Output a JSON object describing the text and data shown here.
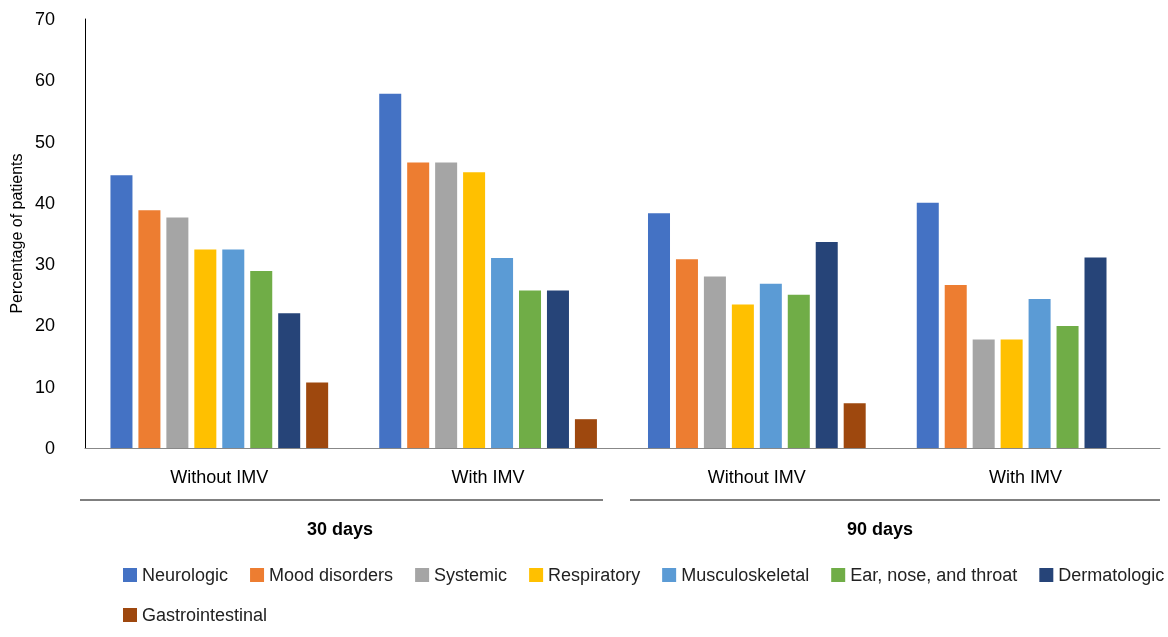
{
  "chart_data": {
    "type": "bar",
    "ylabel": "Percentage of patients",
    "categories": [
      "Without IMV",
      "With IMV",
      "Without IMV",
      "With IMV"
    ],
    "annotations": [
      "30 days",
      "90 days"
    ],
    "series": [
      {
        "name": "Neurologic",
        "color": "#4472c4",
        "values": [
          44.5,
          57.8,
          38.3,
          40
        ]
      },
      {
        "name": "Mood disorders",
        "color": "#ed7d31",
        "values": [
          38.8,
          46.6,
          30.8,
          26.6
        ]
      },
      {
        "name": "Systemic",
        "color": "#a5a5a5",
        "values": [
          37.6,
          46.6,
          28,
          17.7
        ]
      },
      {
        "name": "Respiratory",
        "color": "#ffc000",
        "values": [
          32.4,
          45,
          23.4,
          17.7
        ]
      },
      {
        "name": "Musculoskeletal",
        "color": "#5b9bd5",
        "values": [
          32.4,
          31,
          26.8,
          24.3
        ]
      },
      {
        "name": "Ear, nose, and throat",
        "color": "#70ad47",
        "values": [
          28.9,
          25.7,
          25,
          19.9
        ]
      },
      {
        "name": "Dermatologic",
        "color": "#264478",
        "values": [
          22,
          25.7,
          33.6,
          31.1
        ]
      },
      {
        "name": "Gastrointestinal",
        "color": "#9e480e",
        "values": [
          10.7,
          4.7,
          7.3,
          null
        ]
      }
    ],
    "ylim": [
      0,
      70
    ],
    "yticks": [
      0,
      10,
      20,
      30,
      40,
      50,
      60,
      70
    ],
    "grid": false,
    "legend": "bottom"
  }
}
